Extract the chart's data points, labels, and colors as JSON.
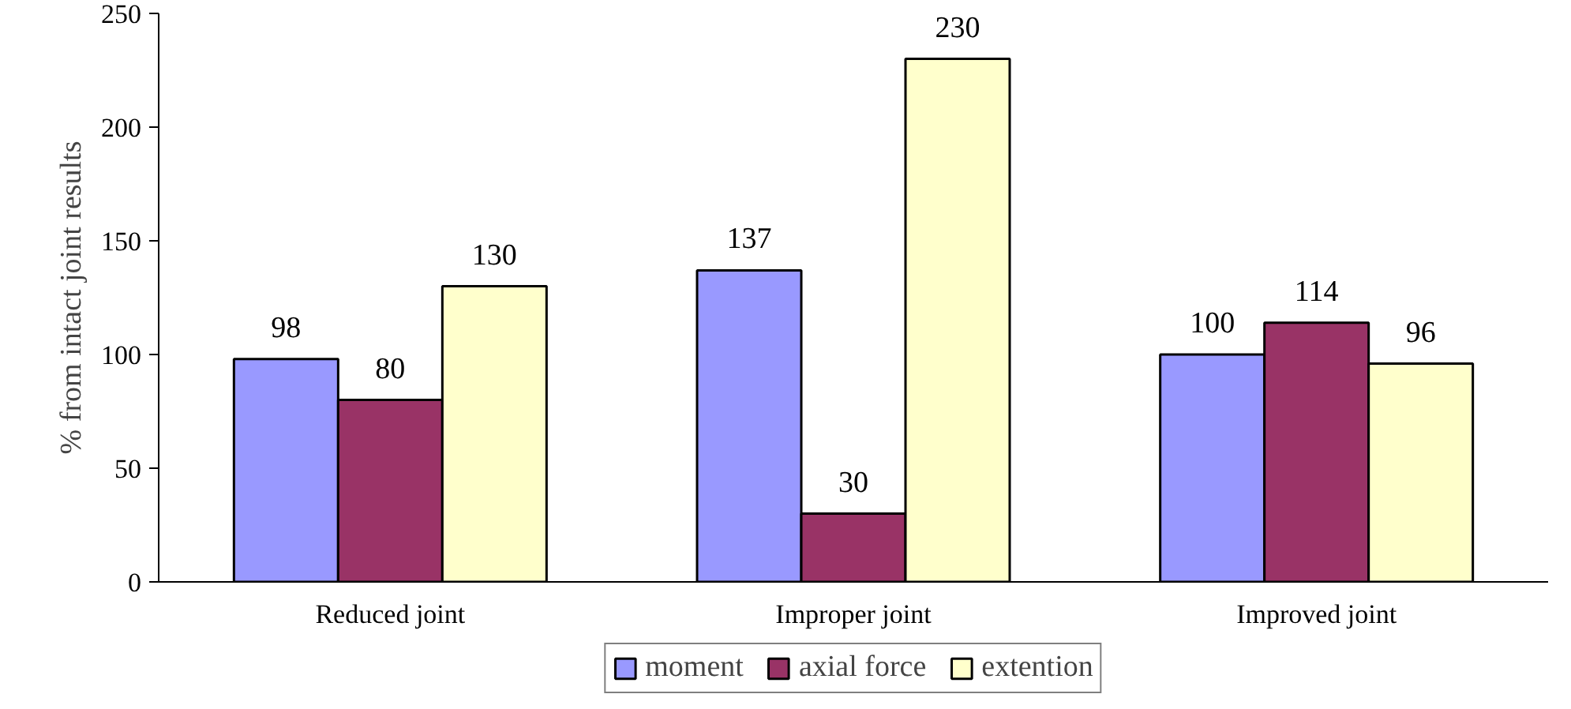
{
  "chart_data": {
    "type": "bar",
    "ylabel": "% from intact joint results",
    "categories": [
      "Reduced joint",
      "Improper joint",
      "Improved joint"
    ],
    "series": [
      {
        "name": "moment",
        "color": "#9999ff",
        "values": [
          98,
          137,
          100
        ]
      },
      {
        "name": "axial force",
        "color": "#993366",
        "values": [
          80,
          30,
          114
        ]
      },
      {
        "name": "extention",
        "color": "#ffffcc",
        "values": [
          130,
          230,
          96
        ]
      }
    ],
    "ylim": [
      0,
      250
    ],
    "yticks": [
      0,
      50,
      100,
      150,
      200,
      250
    ],
    "data_labels": true,
    "grid": false,
    "legend": "bottom"
  }
}
